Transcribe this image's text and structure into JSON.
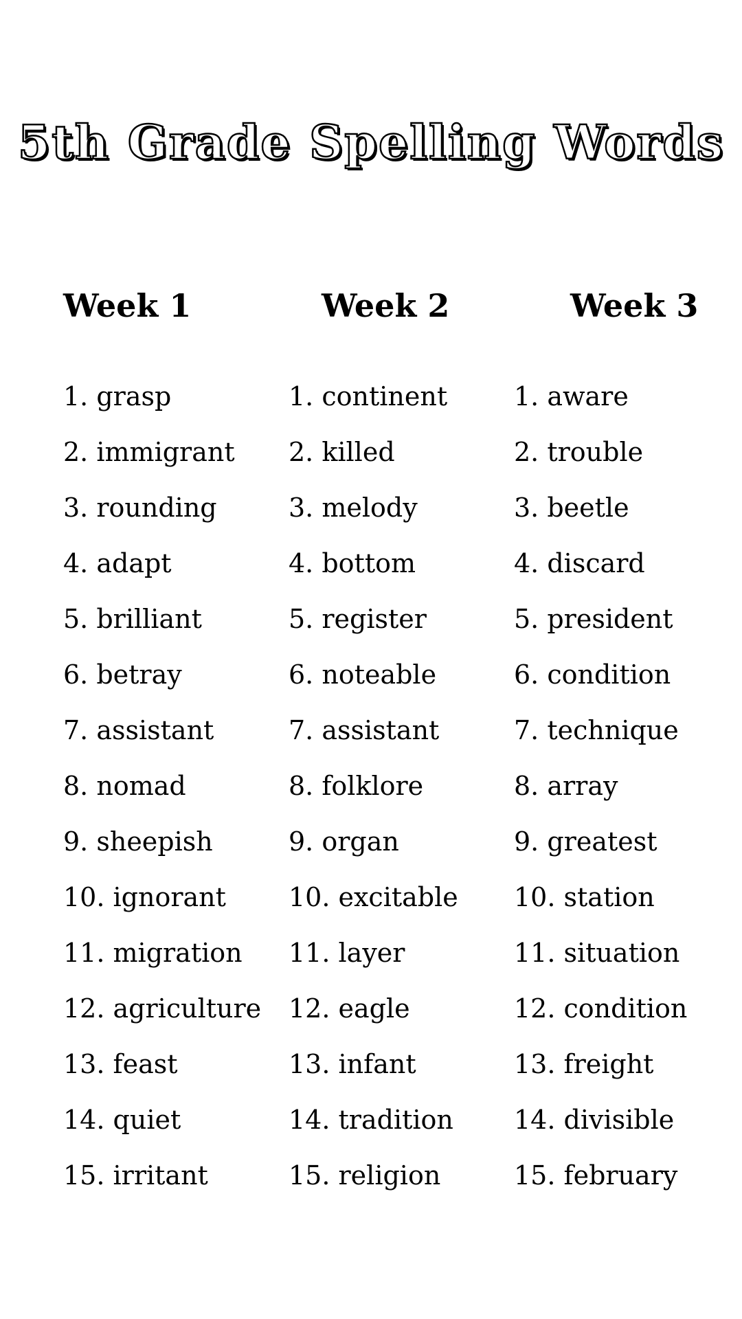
{
  "page": {
    "title": "5th Grade Spelling Words"
  },
  "columns": [
    {
      "header": "Week 1",
      "words": [
        "grasp",
        "immigrant",
        "rounding",
        "adapt",
        "brilliant",
        "betray",
        "assistant",
        "nomad",
        "sheepish",
        "ignorant",
        "migration",
        "agriculture",
        "feast",
        "quiet",
        "irritant"
      ]
    },
    {
      "header": "Week 2",
      "words": [
        "continent",
        "killed",
        "melody",
        "bottom",
        "register",
        "noteable",
        "assistant",
        "folklore",
        "organ",
        "excitable",
        "layer",
        "eagle",
        "infant",
        "tradition",
        "religion"
      ]
    },
    {
      "header": "Week 3",
      "words": [
        "aware",
        "trouble",
        "beetle",
        "discard",
        "president",
        "condition",
        "technique",
        "array",
        "greatest",
        "station",
        "situation",
        "condition",
        "freight",
        "divisible",
        "february"
      ]
    }
  ]
}
